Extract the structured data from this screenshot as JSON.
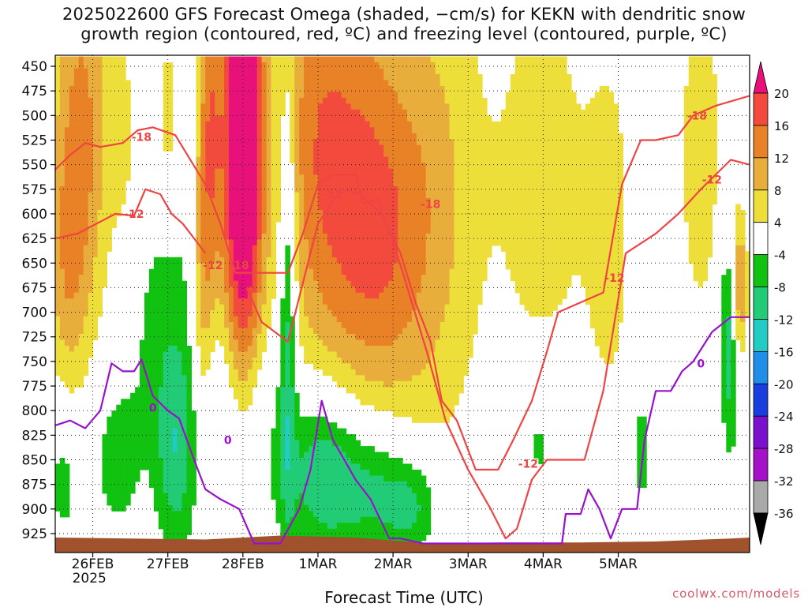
{
  "title_line1": "2025022600 GFS Forecast Omega (shaded, −cm/s) for KEKN with dendritic snow",
  "title_line2": "growth region (contoured, red, ºC) and freezing level (contoured, purple, ºC)",
  "x_axis_title": "Forecast Time (UTC)",
  "credit": "coolwx.com/models",
  "year_label": "2025",
  "colors": {
    "dgz_contour": "#ee4444",
    "freezing_contour": "#9911cc",
    "ground": "#a0522d"
  },
  "chart_data": {
    "type": "heatmap",
    "x_tick_labels": [
      "26FEB",
      "27FEB",
      "28FEB",
      "1MAR",
      "2MAR",
      "3MAR",
      "4MAR",
      "5MAR"
    ],
    "y_tick_labels": [
      "450",
      "475",
      "500",
      "525",
      "550",
      "575",
      "600",
      "625",
      "650",
      "675",
      "700",
      "725",
      "750",
      "775",
      "800",
      "825",
      "850",
      "875",
      "900",
      "925"
    ],
    "y_range_hPa": [
      440,
      940
    ],
    "x_range_days": [
      0,
      9.25
    ],
    "colorbar": {
      "labels": [
        "20",
        "16",
        "12",
        "8",
        "4",
        "-4",
        "-8",
        "-12",
        "-16",
        "-20",
        "-24",
        "-28",
        "-32",
        "-36"
      ],
      "bins": [
        {
          "lo": 20,
          "color": "#e8117a"
        },
        {
          "lo": 16,
          "color": "#f24a3c"
        },
        {
          "lo": 12,
          "color": "#e98126"
        },
        {
          "lo": 8,
          "color": "#e8ad3a"
        },
        {
          "lo": 4,
          "color": "#eede3a"
        },
        {
          "lo": -4,
          "color": "#ffffff"
        },
        {
          "lo": -8,
          "color": "#11c211"
        },
        {
          "lo": -12,
          "color": "#22cc77"
        },
        {
          "lo": -16,
          "color": "#22ccc4"
        },
        {
          "lo": -20,
          "color": "#1f8ee8"
        },
        {
          "lo": -24,
          "color": "#1a3de0"
        },
        {
          "lo": -28,
          "color": "#7a11cc"
        },
        {
          "lo": -32,
          "color": "#a311c8"
        },
        {
          "lo": -36,
          "color": "#a9a9a9"
        },
        {
          "lo": -99,
          "color": "#000000"
        }
      ]
    },
    "omega_blobs": [
      {
        "t": 0.35,
        "p": 510,
        "st": 0.28,
        "sp": 150,
        "v": 13
      },
      {
        "t": 0.15,
        "p": 660,
        "st": 0.2,
        "sp": 90,
        "v": 7
      },
      {
        "t": 0.9,
        "p": 520,
        "st": 0.12,
        "sp": 70,
        "v": 5
      },
      {
        "t": 1.5,
        "p": 500,
        "st": 0.1,
        "sp": 70,
        "v": 6
      },
      {
        "t": 2.05,
        "p": 520,
        "st": 0.12,
        "sp": 130,
        "v": 14
      },
      {
        "t": 2.5,
        "p": 540,
        "st": 0.2,
        "sp": 190,
        "v": 30
      },
      {
        "t": 1.95,
        "p": 700,
        "st": 0.1,
        "sp": 90,
        "v": 8
      },
      {
        "t": 3.4,
        "p": 520,
        "st": 0.35,
        "sp": 170,
        "v": 10
      },
      {
        "t": 4.0,
        "p": 540,
        "st": 0.45,
        "sp": 170,
        "v": 11
      },
      {
        "t": 4.3,
        "p": 650,
        "st": 0.45,
        "sp": 110,
        "v": 7
      },
      {
        "t": 5.0,
        "p": 580,
        "st": 0.5,
        "sp": 190,
        "v": 9
      },
      {
        "t": 6.5,
        "p": 560,
        "st": 0.45,
        "sp": 170,
        "v": 6
      },
      {
        "t": 7.4,
        "p": 620,
        "st": 0.25,
        "sp": 160,
        "v": 5
      },
      {
        "t": 8.6,
        "p": 540,
        "st": 0.25,
        "sp": 150,
        "v": 6
      },
      {
        "t": 9.1,
        "p": 680,
        "st": 0.08,
        "sp": 60,
        "v": 17
      },
      {
        "t": 1.5,
        "p": 720,
        "st": 0.35,
        "sp": 100,
        "v": -6
      },
      {
        "t": 1.6,
        "p": 850,
        "st": 0.18,
        "sp": 70,
        "v": -9
      },
      {
        "t": 2.5,
        "p": 820,
        "st": 0.35,
        "sp": 80,
        "v": -8
      },
      {
        "t": 0.8,
        "p": 850,
        "st": 0.25,
        "sp": 60,
        "v": -6
      },
      {
        "t": 0.1,
        "p": 870,
        "st": 0.15,
        "sp": 50,
        "v": -6
      },
      {
        "t": 3.1,
        "p": 690,
        "st": 0.08,
        "sp": 150,
        "v": -12
      },
      {
        "t": 3.55,
        "p": 860,
        "st": 0.35,
        "sp": 60,
        "v": -12
      },
      {
        "t": 4.3,
        "p": 880,
        "st": 0.4,
        "sp": 50,
        "v": -10
      },
      {
        "t": 4.8,
        "p": 900,
        "st": 0.25,
        "sp": 35,
        "v": -7
      },
      {
        "t": 6.45,
        "p": 830,
        "st": 0.2,
        "sp": 50,
        "v": -6
      },
      {
        "t": 7.8,
        "p": 840,
        "st": 0.12,
        "sp": 50,
        "v": -6
      },
      {
        "t": 9.0,
        "p": 720,
        "st": 0.1,
        "sp": 80,
        "v": -14
      }
    ],
    "surface_pressure_hPa": [
      [
        0,
        929
      ],
      [
        1.0,
        930
      ],
      [
        2.0,
        931
      ],
      [
        3.0,
        927
      ],
      [
        4.0,
        929
      ],
      [
        5.0,
        935
      ],
      [
        6.0,
        934
      ],
      [
        7.0,
        934
      ],
      [
        8.0,
        933
      ],
      [
        9.0,
        930
      ],
      [
        9.25,
        929
      ]
    ],
    "dgz_contours": [
      {
        "label": "-12",
        "points": [
          [
            0,
            625
          ],
          [
            0.3,
            620
          ],
          [
            0.55,
            610
          ],
          [
            0.8,
            600
          ],
          [
            1.05,
            602
          ],
          [
            1.2,
            575
          ],
          [
            1.4,
            580
          ],
          [
            1.55,
            600
          ],
          [
            1.7,
            610
          ],
          [
            1.85,
            625
          ],
          [
            2.0,
            640
          ]
        ],
        "label_at": [
          [
            1.05,
            600
          ],
          [
            2.1,
            652
          ]
        ]
      },
      {
        "label": "-18",
        "points": [
          [
            0,
            555
          ],
          [
            0.2,
            540
          ],
          [
            0.4,
            528
          ],
          [
            0.6,
            532
          ],
          [
            0.9,
            528
          ],
          [
            1.1,
            515
          ],
          [
            1.3,
            512
          ],
          [
            1.6,
            520
          ],
          [
            1.8,
            545
          ],
          [
            2.0,
            570
          ],
          [
            2.2,
            610
          ],
          [
            2.4,
            660
          ],
          [
            2.6,
            660
          ],
          [
            2.9,
            660
          ],
          [
            3.1,
            660
          ],
          [
            3.3,
            620
          ],
          [
            3.5,
            570
          ],
          [
            3.7,
            560
          ],
          [
            4.0,
            560
          ],
          [
            4.1,
            590
          ],
          [
            4.3,
            585
          ],
          [
            4.4,
            610
          ],
          [
            4.6,
            640
          ],
          [
            4.8,
            690
          ],
          [
            5.0,
            730
          ],
          [
            5.15,
            790
          ],
          [
            5.35,
            810
          ],
          [
            5.6,
            860
          ],
          [
            5.9,
            860
          ],
          [
            6.1,
            830
          ],
          [
            6.35,
            790
          ],
          [
            6.55,
            740
          ],
          [
            6.7,
            700
          ],
          [
            7.0,
            690
          ],
          [
            7.3,
            680
          ],
          [
            7.55,
            570
          ],
          [
            7.8,
            525
          ],
          [
            8.0,
            525
          ],
          [
            8.3,
            520
          ],
          [
            8.5,
            500
          ],
          [
            8.8,
            490
          ],
          [
            9.25,
            480
          ]
        ],
        "label_at": [
          [
            1.15,
            522
          ],
          [
            2.45,
            652
          ],
          [
            5.0,
            590
          ],
          [
            8.55,
            500
          ]
        ]
      },
      {
        "label": "-12",
        "points": [
          [
            2.55,
            675
          ],
          [
            2.75,
            710
          ],
          [
            3.1,
            730
          ],
          [
            3.5,
            610
          ],
          [
            3.8,
            575
          ],
          [
            4.05,
            580
          ],
          [
            4.35,
            600
          ],
          [
            4.55,
            640
          ],
          [
            4.75,
            690
          ],
          [
            4.95,
            740
          ],
          [
            5.2,
            810
          ],
          [
            5.5,
            860
          ],
          [
            5.8,
            900
          ],
          [
            6.0,
            930
          ],
          [
            6.15,
            920
          ],
          [
            6.35,
            870
          ],
          [
            6.55,
            850
          ],
          [
            6.8,
            850
          ],
          [
            7.05,
            850
          ],
          [
            7.3,
            780
          ],
          [
            7.6,
            640
          ],
          [
            8.0,
            620
          ],
          [
            8.3,
            600
          ],
          [
            8.6,
            575
          ],
          [
            9.0,
            545
          ],
          [
            9.25,
            550
          ]
        ],
        "label_at": [
          [
            3.7,
            580
          ],
          [
            6.3,
            854
          ],
          [
            7.45,
            665
          ],
          [
            8.75,
            565
          ]
        ]
      }
    ],
    "freezing_contours": [
      {
        "label": "0",
        "points": [
          [
            0,
            815
          ],
          [
            0.2,
            810
          ],
          [
            0.4,
            818
          ],
          [
            0.6,
            800
          ],
          [
            0.75,
            752
          ],
          [
            0.9,
            760
          ],
          [
            1.05,
            760
          ],
          [
            1.15,
            748
          ],
          [
            1.3,
            785
          ],
          [
            1.5,
            800
          ],
          [
            1.65,
            808
          ],
          [
            1.85,
            850
          ],
          [
            2.0,
            880
          ],
          [
            2.2,
            890
          ],
          [
            2.45,
            900
          ],
          [
            2.65,
            935
          ],
          [
            3.0,
            935
          ],
          [
            3.25,
            900
          ],
          [
            3.4,
            860
          ],
          [
            3.55,
            790
          ],
          [
            3.7,
            830
          ],
          [
            3.85,
            850
          ],
          [
            4.0,
            870
          ],
          [
            4.2,
            890
          ],
          [
            4.45,
            930
          ],
          [
            4.6,
            930
          ],
          [
            4.9,
            935
          ],
          [
            5.4,
            935
          ],
          [
            6.1,
            935
          ],
          [
            6.55,
            935
          ],
          [
            6.75,
            935
          ],
          [
            6.8,
            905
          ],
          [
            7.0,
            905
          ],
          [
            7.1,
            880
          ],
          [
            7.25,
            900
          ],
          [
            7.4,
            930
          ],
          [
            7.55,
            900
          ],
          [
            7.75,
            900
          ],
          [
            7.85,
            830
          ],
          [
            8.0,
            780
          ],
          [
            8.2,
            780
          ],
          [
            8.35,
            760
          ],
          [
            8.5,
            750
          ],
          [
            8.75,
            720
          ],
          [
            9.0,
            705
          ],
          [
            9.25,
            705
          ]
        ],
        "label_at": [
          [
            1.3,
            797
          ],
          [
            2.3,
            830
          ],
          [
            8.6,
            752
          ]
        ]
      }
    ]
  }
}
